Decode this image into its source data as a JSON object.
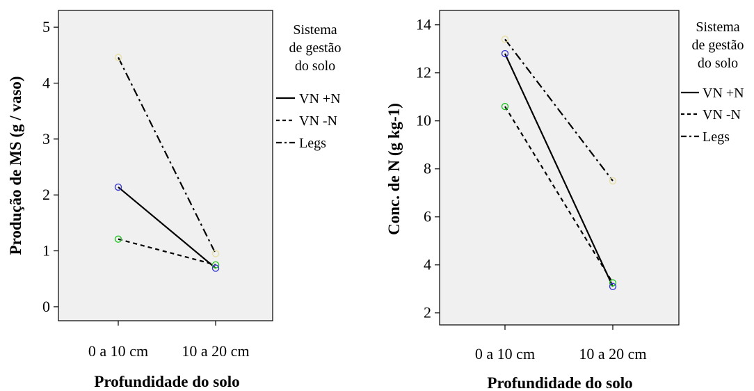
{
  "legend": {
    "title_lines": [
      "Sistema",
      "de gestão",
      "do solo"
    ],
    "entries": [
      {
        "label": "VN +N",
        "dash": "solid"
      },
      {
        "label": "VN -N",
        "dash": "dashed"
      },
      {
        "label": "Legs",
        "dash": "dashdot"
      }
    ]
  },
  "colors": {
    "plot_background": "#f0f0f0",
    "line": "#000000",
    "marker_vn_plus_n": "#3a3ad0",
    "marker_vn_minus_n": "#27c427",
    "marker_legs": "#e8e0a6"
  },
  "chart_data": [
    {
      "type": "line",
      "xlabel": "Profundidade do solo",
      "ylabel": "Produção de MS (g / vaso)",
      "categories": [
        "0 a 10 cm",
        "10 a 20 cm"
      ],
      "ylim": [
        -0.25,
        5.3
      ],
      "yticks": [
        0,
        1,
        2,
        3,
        4,
        5
      ],
      "series": [
        {
          "name": "VN +N",
          "values": [
            2.14,
            0.69
          ]
        },
        {
          "name": "VN -N",
          "values": [
            1.21,
            0.75
          ]
        },
        {
          "name": "Legs",
          "values": [
            4.46,
            0.95
          ]
        }
      ]
    },
    {
      "type": "line",
      "xlabel": "Profundidade do solo",
      "ylabel": "Conc. de N (g kg-1)",
      "categories": [
        "0 a 10 cm",
        "10 a 20 cm"
      ],
      "ylim": [
        1.5,
        14.6
      ],
      "yticks": [
        2,
        4,
        6,
        8,
        10,
        12,
        14
      ],
      "series": [
        {
          "name": "VN +N",
          "values": [
            12.8,
            3.1
          ]
        },
        {
          "name": "VN -N",
          "values": [
            10.6,
            3.25
          ]
        },
        {
          "name": "Legs",
          "values": [
            13.4,
            7.5
          ]
        }
      ]
    }
  ]
}
